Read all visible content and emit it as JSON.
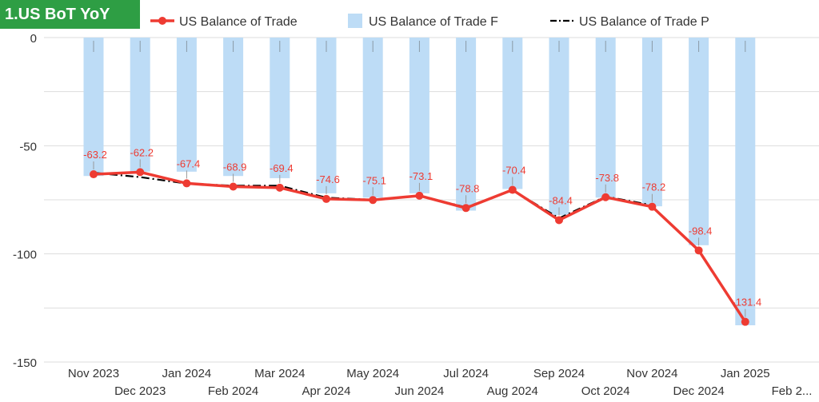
{
  "header": {
    "tag": "1.US BoT YoY"
  },
  "legend": [
    {
      "label": "US Balance of Trade",
      "style": "line-marker",
      "color": "#ee3b32"
    },
    {
      "label": "US Balance of Trade F",
      "style": "bar",
      "color": "#bddcf6"
    },
    {
      "label": "US Balance of Trade P",
      "style": "dash-dot",
      "color": "#000000"
    }
  ],
  "chart_data": {
    "type": "bar",
    "title": "1.US BoT YoY",
    "categories": [
      "Nov 2023",
      "Dec 2023",
      "Jan 2024",
      "Feb 2024",
      "Mar 2024",
      "Apr 2024",
      "May 2024",
      "Jun 2024",
      "Jul 2024",
      "Aug 2024",
      "Sep 2024",
      "Oct 2024",
      "Nov 2024",
      "Dec 2024",
      "Jan 2025",
      "Feb 2..."
    ],
    "ylim": [
      -150,
      0
    ],
    "yticks": [
      0,
      -50,
      -100,
      -150
    ],
    "grid": true,
    "legend_position": "top",
    "series": [
      {
        "name": "US Balance of Trade",
        "type": "line",
        "color": "#ee3b32",
        "values": [
          -63.2,
          -62.2,
          -67.4,
          -68.9,
          -69.4,
          -74.6,
          -75.1,
          -73.1,
          -78.8,
          -70.4,
          -84.4,
          -73.8,
          -78.2,
          -98.4,
          -131.4,
          null
        ],
        "labels": [
          "-63.2",
          "-62.2",
          "-67.4",
          "-68.9",
          "-69.4",
          "-74.6",
          "-75.1",
          "-73.1",
          "-78.8",
          "-70.4",
          "-84.4",
          "-73.8",
          "-78.2",
          "-98.4",
          "-131.4",
          ""
        ]
      },
      {
        "name": "US Balance of Trade F",
        "type": "bar",
        "color": "#bddcf6",
        "values": [
          -64,
          -62,
          -62,
          -64,
          -65,
          -72,
          -74,
          -72,
          -80,
          -70,
          -82,
          -74,
          -78,
          -96,
          -133,
          null
        ]
      },
      {
        "name": "US Balance of Trade P",
        "type": "line",
        "color": "#000000",
        "dash": "dash-dot",
        "values": [
          -62.5,
          -64.5,
          -67.5,
          -68.5,
          -68.5,
          -74,
          -75,
          -73,
          -78.5,
          -70.5,
          -83.5,
          -73.5,
          -77.5,
          null,
          null,
          null
        ]
      }
    ]
  }
}
